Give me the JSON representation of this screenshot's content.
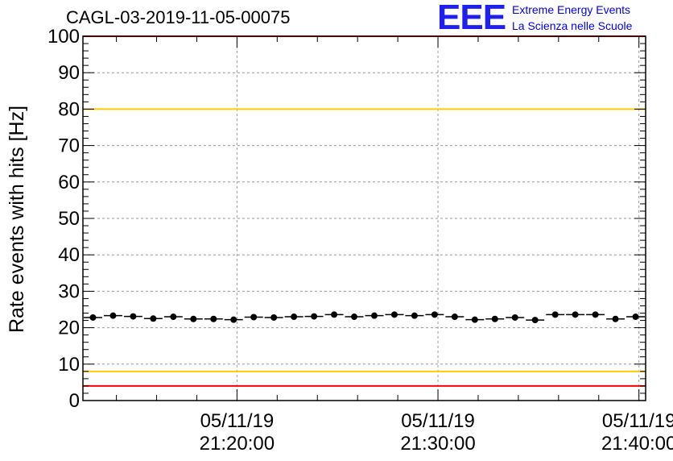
{
  "chart_data": {
    "type": "scatter",
    "title": "CAGL-03-2019-11-05-00075",
    "ylabel": "Rate events with hits [Hz]",
    "xlabel": "",
    "ylim": [
      0,
      100
    ],
    "y_ticks": [
      "0",
      "10",
      "20",
      "30",
      "40",
      "50",
      "60",
      "70",
      "80",
      "90",
      "100"
    ],
    "x_ticks": [
      {
        "date": "05/11/19",
        "time": "21:20:00"
      },
      {
        "date": "05/11/19",
        "time": "21:30:00"
      },
      {
        "date": "05/11/19",
        "time": "21:40:00"
      }
    ],
    "x_range": [
      "21:12:20",
      "21:40:20"
    ],
    "bin_width_seconds": 60,
    "grid": true,
    "reference_lines": [
      {
        "value": 100,
        "color": "#ff0000"
      },
      {
        "value": 80,
        "color": "#ffcc00"
      },
      {
        "value": 8,
        "color": "#ffcc00"
      },
      {
        "value": 4,
        "color": "#ff0000"
      }
    ],
    "series": [
      {
        "marker_color": "#000000",
        "x": [
          "21:12:50",
          "21:13:50",
          "21:14:50",
          "21:15:50",
          "21:16:50",
          "21:17:50",
          "21:18:50",
          "21:19:50",
          "21:20:50",
          "21:21:50",
          "21:22:50",
          "21:23:50",
          "21:24:50",
          "21:25:50",
          "21:26:50",
          "21:27:50",
          "21:28:50",
          "21:29:50",
          "21:30:50",
          "21:31:50",
          "21:32:50",
          "21:33:50",
          "21:34:50",
          "21:35:50",
          "21:36:50",
          "21:37:50",
          "21:38:50",
          "21:39:50"
        ],
        "values": [
          22.8,
          23.3,
          23.1,
          22.5,
          23.0,
          22.4,
          22.4,
          22.2,
          22.9,
          22.8,
          23.0,
          23.1,
          23.6,
          23.0,
          23.3,
          23.6,
          23.3,
          23.6,
          23.0,
          22.2,
          22.4,
          22.8,
          22.1,
          23.6,
          23.6,
          23.6,
          22.4,
          23.0
        ]
      }
    ]
  },
  "logo": {
    "mark": "EEE",
    "line1": "Extreme Energy Events",
    "line2": "La Scienza nelle Scuole",
    "color": "#0000ee"
  }
}
